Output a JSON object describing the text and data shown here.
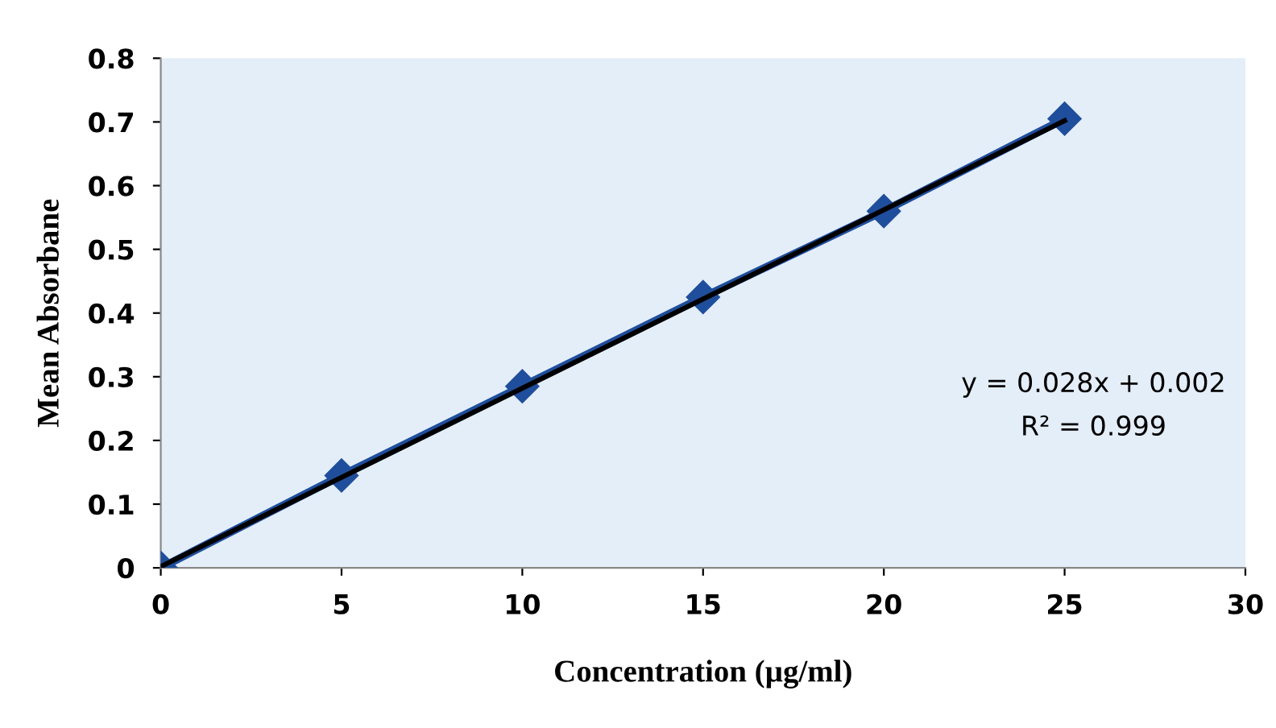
{
  "chart_data": {
    "type": "line",
    "xlabel": "Concentration (µg/ml)",
    "ylabel": "Mean Absorbane",
    "x": [
      0,
      5,
      10,
      15,
      20,
      25
    ],
    "series": [
      {
        "color": "#1f4e9c",
        "values": [
          0,
          0.145,
          0.285,
          0.425,
          0.56,
          0.705
        ],
        "marker": "diamond",
        "line_style": "solid"
      },
      {
        "type": "line",
        "color": "#000000",
        "x": [
          0,
          25
        ],
        "values": [
          0.002,
          0.702
        ],
        "marker": "none",
        "line_style": "solid"
      }
    ],
    "xlim": [
      0,
      30
    ],
    "xticks": [
      0,
      5,
      10,
      15,
      20,
      25,
      30
    ],
    "ylim": [
      0,
      0.8
    ],
    "yticks": [
      0,
      0.1,
      0.2,
      0.3,
      0.4,
      0.5,
      0.6,
      0.7,
      0.8
    ],
    "grid": false,
    "annotations": [
      "y = 0.028x + 0.002",
      "R² = 0.999"
    ]
  }
}
